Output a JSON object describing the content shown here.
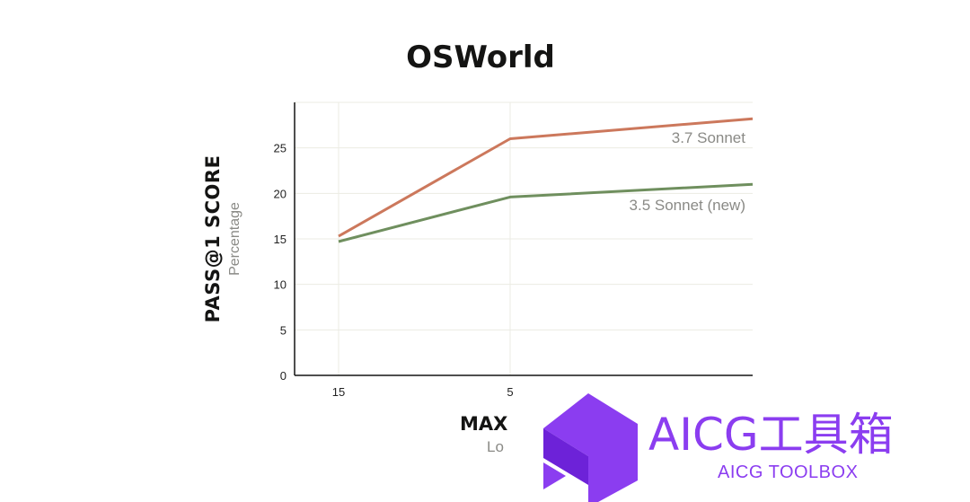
{
  "chart_data": {
    "type": "line",
    "title": "OSWorld",
    "ylabel": "PASS@1 SCORE",
    "ylabel_sub": "Percentage",
    "xlabel": "MAX",
    "xlabel_sub": "Lo",
    "categories": [
      "15",
      "5",
      ""
    ],
    "y_ticks": [
      0,
      5,
      10,
      15,
      20,
      25
    ],
    "ylim": [
      0,
      30
    ],
    "grid": true,
    "series": [
      {
        "name": "3.7 Sonnet",
        "values": [
          15.3,
          26.0,
          28.2
        ],
        "color": "#cc785c"
      },
      {
        "name": "3.5 Sonnet (new)",
        "values": [
          14.7,
          19.6,
          21.0
        ],
        "color": "#6f8f5e"
      }
    ]
  },
  "watermark": {
    "text": "AICG工具箱",
    "subtext": "AICG TOOLBOX",
    "color": "#8b3df0"
  }
}
